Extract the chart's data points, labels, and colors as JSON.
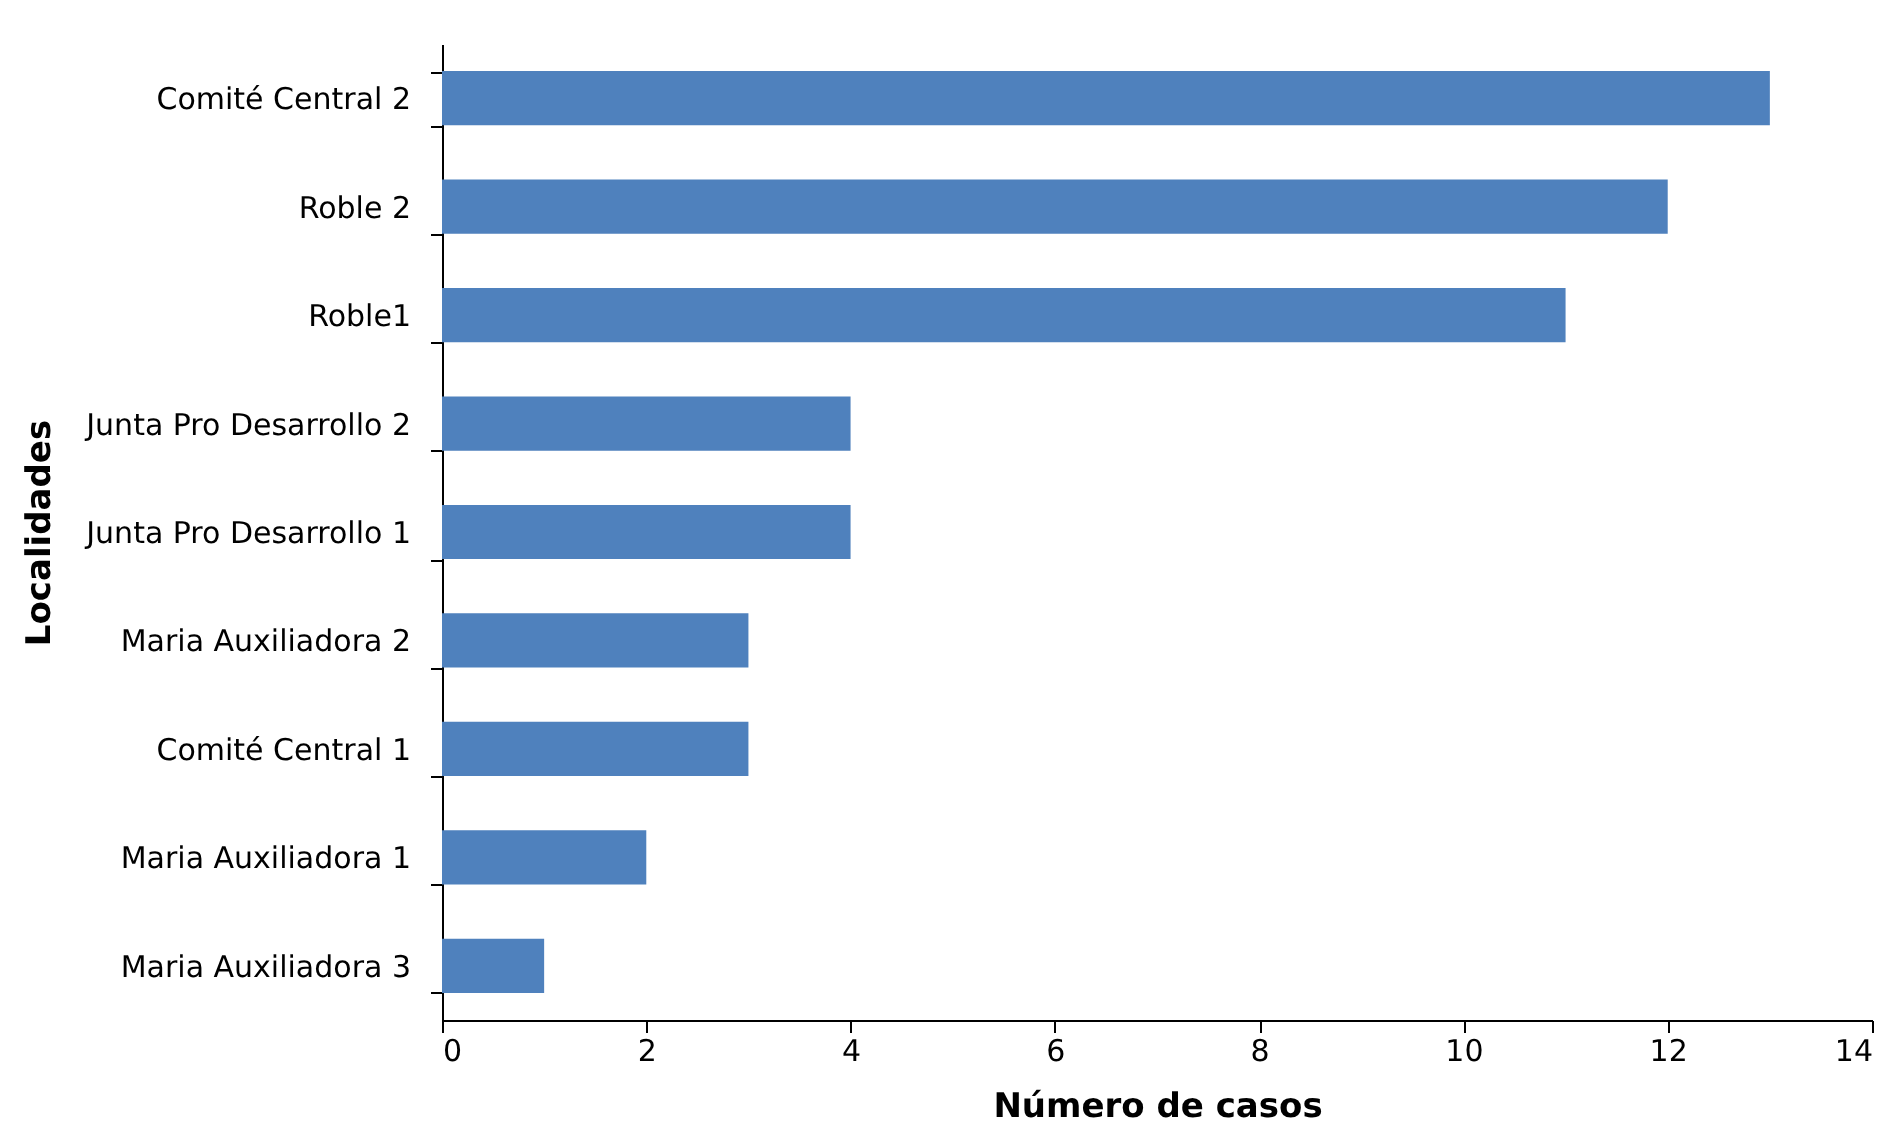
{
  "chart_data": {
    "type": "bar",
    "orientation": "horizontal",
    "xlabel": "Número de casos",
    "ylabel": "Localidades",
    "categories": [
      "Comité Central 2",
      "Roble 2",
      "Roble1",
      "Junta Pro Desarrollo 2",
      "Junta Pro Desarrollo 1",
      "Maria Auxiliadora 2",
      "Comité Central 1",
      "Maria Auxiliadora 1",
      "Maria Auxiliadora 3"
    ],
    "values": [
      13,
      12,
      11,
      4,
      4,
      3,
      3,
      2,
      1
    ],
    "color": "#4f81bd",
    "xlim": [
      0,
      14
    ],
    "xticks": [
      0,
      2,
      4,
      6,
      8,
      10,
      12,
      14
    ],
    "grid": false
  }
}
